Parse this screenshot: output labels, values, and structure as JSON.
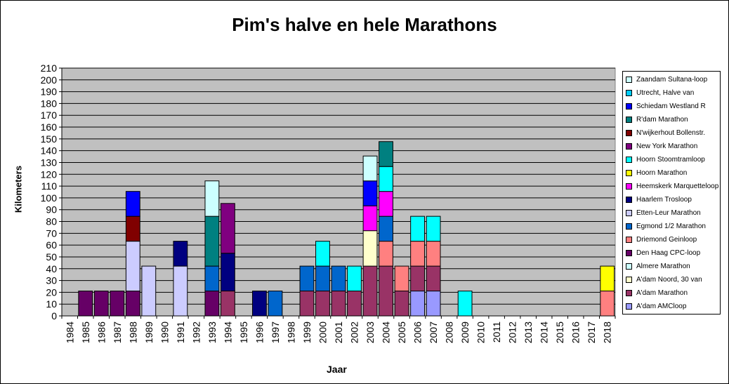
{
  "chart_data": {
    "type": "bar",
    "stacked": true,
    "title": "Pim's halve en hele Marathons",
    "xlabel": "Jaar",
    "ylabel": "Kilometers",
    "ylim": [
      0,
      210
    ],
    "ytick_step": 10,
    "grid": true,
    "legend_position": "right",
    "categories": [
      "1984",
      "1985",
      "1986",
      "1987",
      "1988",
      "1989",
      "1990",
      "1991",
      "1992",
      "1993",
      "1994",
      "1995",
      "1996",
      "1997",
      "1998",
      "1999",
      "2000",
      "2001",
      "2002",
      "2003",
      "2004",
      "2005",
      "2006",
      "2007",
      "2008",
      "2009",
      "2010",
      "2011",
      "2012",
      "2013",
      "2014",
      "2015",
      "2016",
      "2017",
      "2018"
    ],
    "series": [
      {
        "name": "A'dam AMCloop",
        "color": "#9999ff",
        "values": [
          0,
          0,
          0,
          0,
          0,
          0,
          0,
          0,
          0,
          0,
          0,
          0,
          0,
          0,
          0,
          0,
          0,
          0,
          0,
          0,
          0,
          0,
          21.1,
          21.1,
          0,
          0,
          0,
          0,
          0,
          0,
          0,
          0,
          0,
          0,
          0
        ]
      },
      {
        "name": "A'dam Marathon",
        "color": "#993366",
        "values": [
          0,
          0,
          0,
          0,
          0,
          0,
          0,
          0,
          0,
          0,
          21.1,
          0,
          0,
          0,
          0,
          21.1,
          21.1,
          21.1,
          21.1,
          42.2,
          42.2,
          21.1,
          21.1,
          21.1,
          0,
          0,
          0,
          0,
          0,
          0,
          0,
          0,
          0,
          0,
          0
        ]
      },
      {
        "name": "A'dam Noord, 30 van",
        "color": "#ffffcc",
        "values": [
          0,
          0,
          0,
          0,
          0,
          0,
          0,
          0,
          0,
          0,
          0,
          0,
          0,
          0,
          0,
          0,
          0,
          0,
          0,
          30,
          0,
          0,
          0,
          0,
          0,
          0,
          0,
          0,
          0,
          0,
          0,
          0,
          0,
          0,
          0
        ]
      },
      {
        "name": "Almere Marathon",
        "color": "#ccffff",
        "values": [
          0,
          0,
          0,
          0,
          0,
          0,
          0,
          0,
          0,
          0,
          0,
          0,
          0,
          0,
          0,
          0,
          0,
          0,
          0,
          0,
          0,
          0,
          0,
          0,
          0,
          0,
          0,
          0,
          0,
          0,
          0,
          0,
          0,
          0,
          0
        ]
      },
      {
        "name": "Den Haag CPC-loop",
        "color": "#660066",
        "values": [
          0,
          21.1,
          21.1,
          21.1,
          21.1,
          0,
          0,
          0,
          0,
          21.1,
          0,
          0,
          0,
          0,
          0,
          0,
          0,
          0,
          0,
          0,
          0,
          0,
          0,
          0,
          0,
          0,
          0,
          0,
          0,
          0,
          0,
          0,
          0,
          0,
          0
        ]
      },
      {
        "name": "Driemond Geinloop",
        "color": "#ff8080",
        "values": [
          0,
          0,
          0,
          0,
          0,
          0,
          0,
          0,
          0,
          0,
          0,
          0,
          0,
          0,
          0,
          0,
          0,
          0,
          0,
          0,
          21.1,
          21.1,
          21.1,
          21.1,
          0,
          0,
          0,
          0,
          0,
          0,
          0,
          0,
          0,
          0,
          21.1
        ]
      },
      {
        "name": "Egmond 1/2 Marathon",
        "color": "#0066cc",
        "values": [
          0,
          0,
          0,
          0,
          0,
          0,
          0,
          0,
          0,
          21.1,
          0,
          0,
          0,
          21.1,
          0,
          21.1,
          21.1,
          21.1,
          0,
          0,
          21.1,
          0,
          0,
          0,
          0,
          0,
          0,
          0,
          0,
          0,
          0,
          0,
          0,
          0,
          0
        ]
      },
      {
        "name": "Etten-Leur Marathon",
        "color": "#ccccff",
        "values": [
          0,
          0,
          0,
          0,
          42.2,
          42.2,
          0,
          42.2,
          0,
          0,
          0,
          0,
          0,
          0,
          0,
          0,
          0,
          0,
          0,
          0,
          0,
          0,
          0,
          0,
          0,
          0,
          0,
          0,
          0,
          0,
          0,
          0,
          0,
          0,
          0
        ]
      },
      {
        "name": "Haarlem Trosloop",
        "color": "#000080",
        "values": [
          0,
          0,
          0,
          0,
          0,
          0,
          0,
          21.1,
          0,
          0,
          32,
          0,
          21.1,
          0,
          0,
          0,
          0,
          0,
          0,
          0,
          0,
          0,
          0,
          0,
          0,
          0,
          0,
          0,
          0,
          0,
          0,
          0,
          0,
          0,
          0
        ]
      },
      {
        "name": "Heemskerk Marquetteloop",
        "color": "#ff00ff",
        "values": [
          0,
          0,
          0,
          0,
          0,
          0,
          0,
          0,
          0,
          0,
          0,
          0,
          0,
          0,
          0,
          0,
          0,
          0,
          0,
          21.1,
          21.1,
          0,
          0,
          0,
          0,
          0,
          0,
          0,
          0,
          0,
          0,
          0,
          0,
          0,
          0
        ]
      },
      {
        "name": "Hoorn Marathon",
        "color": "#ffff00",
        "values": [
          0,
          0,
          0,
          0,
          0,
          0,
          0,
          0,
          0,
          0,
          0,
          0,
          0,
          0,
          0,
          0,
          0,
          0,
          0,
          0,
          0,
          0,
          0,
          0,
          0,
          0,
          0,
          0,
          0,
          0,
          0,
          0,
          0,
          0,
          21.1
        ]
      },
      {
        "name": "Hoorn Stoomtramloop",
        "color": "#00ffff",
        "values": [
          0,
          0,
          0,
          0,
          0,
          0,
          0,
          0,
          0,
          0,
          0,
          0,
          0,
          0,
          0,
          0,
          21.1,
          0,
          21.1,
          0,
          21.1,
          0,
          21.1,
          21.1,
          0,
          21.1,
          0,
          0,
          0,
          0,
          0,
          0,
          0,
          0,
          0
        ]
      },
      {
        "name": "New York Marathon",
        "color": "#800080",
        "values": [
          0,
          0,
          0,
          0,
          0,
          0,
          0,
          0,
          0,
          0,
          42.2,
          0,
          0,
          0,
          0,
          0,
          0,
          0,
          0,
          0,
          0,
          0,
          0,
          0,
          0,
          0,
          0,
          0,
          0,
          0,
          0,
          0,
          0,
          0,
          0
        ]
      },
      {
        "name": "N'wijkerhout Bollenstr.",
        "color": "#800000",
        "values": [
          0,
          0,
          0,
          0,
          21.1,
          0,
          0,
          0,
          0,
          0,
          0,
          0,
          0,
          0,
          0,
          0,
          0,
          0,
          0,
          0,
          0,
          0,
          0,
          0,
          0,
          0,
          0,
          0,
          0,
          0,
          0,
          0,
          0,
          0,
          0
        ]
      },
      {
        "name": "R'dam Marathon",
        "color": "#008080",
        "values": [
          0,
          0,
          0,
          0,
          0,
          0,
          0,
          0,
          0,
          42.2,
          0,
          0,
          0,
          0,
          0,
          0,
          0,
          0,
          0,
          0,
          21.1,
          0,
          0,
          0,
          0,
          0,
          0,
          0,
          0,
          0,
          0,
          0,
          0,
          0,
          0
        ]
      },
      {
        "name": "Schiedam Westland R",
        "color": "#0000ff",
        "values": [
          0,
          0,
          0,
          0,
          21.1,
          0,
          0,
          0,
          0,
          0,
          0,
          0,
          0,
          0,
          0,
          0,
          0,
          0,
          0,
          21.1,
          0,
          0,
          0,
          0,
          0,
          0,
          0,
          0,
          0,
          0,
          0,
          0,
          0,
          0,
          0
        ]
      },
      {
        "name": "Utrecht, Halve van",
        "color": "#00ccff",
        "values": [
          0,
          0,
          0,
          0,
          0,
          0,
          0,
          0,
          0,
          0,
          0,
          0,
          0,
          0,
          0,
          0,
          0,
          0,
          0,
          0,
          0,
          0,
          0,
          0,
          0,
          0,
          0,
          0,
          0,
          0,
          0,
          0,
          0,
          0,
          0
        ]
      },
      {
        "name": "Zaandam Sultana-loop",
        "color": "#ccffff",
        "values": [
          0,
          0,
          0,
          0,
          0,
          0,
          0,
          0,
          0,
          30,
          0,
          0,
          0,
          0,
          0,
          0,
          0,
          0,
          0,
          21.1,
          0,
          0,
          0,
          0,
          0,
          0,
          0,
          0,
          0,
          0,
          0,
          0,
          0,
          0,
          0
        ]
      }
    ],
    "legend_order": [
      "Zaandam Sultana-loop",
      "Utrecht, Halve van",
      "Schiedam Westland R",
      "R'dam Marathon",
      "N'wijkerhout Bollenstr.",
      "New York Marathon",
      "Hoorn Stoomtramloop",
      "Hoorn Marathon",
      "Heemskerk Marquetteloop",
      "Haarlem Trosloop",
      "Etten-Leur Marathon",
      "Egmond 1/2 Marathon",
      "Driemond Geinloop",
      "Den Haag CPC-loop",
      "Almere Marathon",
      "A'dam Noord, 30 van",
      "A'dam Marathon",
      "A'dam AMCloop"
    ],
    "plot_background": "#c0c0c0"
  }
}
